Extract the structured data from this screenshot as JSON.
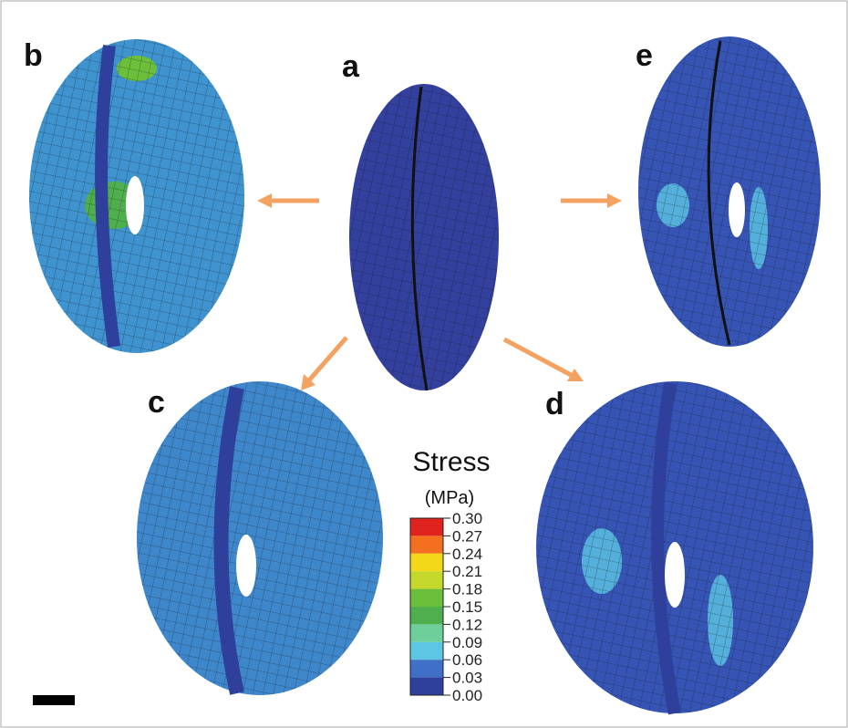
{
  "panels": [
    {
      "label": "a"
    },
    {
      "label": "b"
    },
    {
      "label": "c"
    },
    {
      "label": "d"
    },
    {
      "label": "e"
    }
  ],
  "colorbar": {
    "title": "Stress",
    "unit": "(MPa)",
    "ticks": [
      {
        "value": 0.3,
        "label": "0.30"
      },
      {
        "value": 0.27,
        "label": "0.27"
      },
      {
        "value": 0.24,
        "label": "0.24"
      },
      {
        "value": 0.21,
        "label": "0.21"
      },
      {
        "value": 0.18,
        "label": "0.18"
      },
      {
        "value": 0.15,
        "label": "0.15"
      },
      {
        "value": 0.12,
        "label": "0.12"
      },
      {
        "value": 0.09,
        "label": "0.09"
      },
      {
        "value": 0.06,
        "label": "0.06"
      },
      {
        "value": 0.03,
        "label": "0.03"
      },
      {
        "value": 0,
        "label": "0.00"
      }
    ],
    "colors": [
      "#e0231f",
      "#f2701f",
      "#f3d81a",
      "#c3d82a",
      "#6cbf3a",
      "#4fae4e",
      "#6fcf9a",
      "#5cc6e3",
      "#3f6fc6",
      "#2f3f9c"
    ]
  }
}
